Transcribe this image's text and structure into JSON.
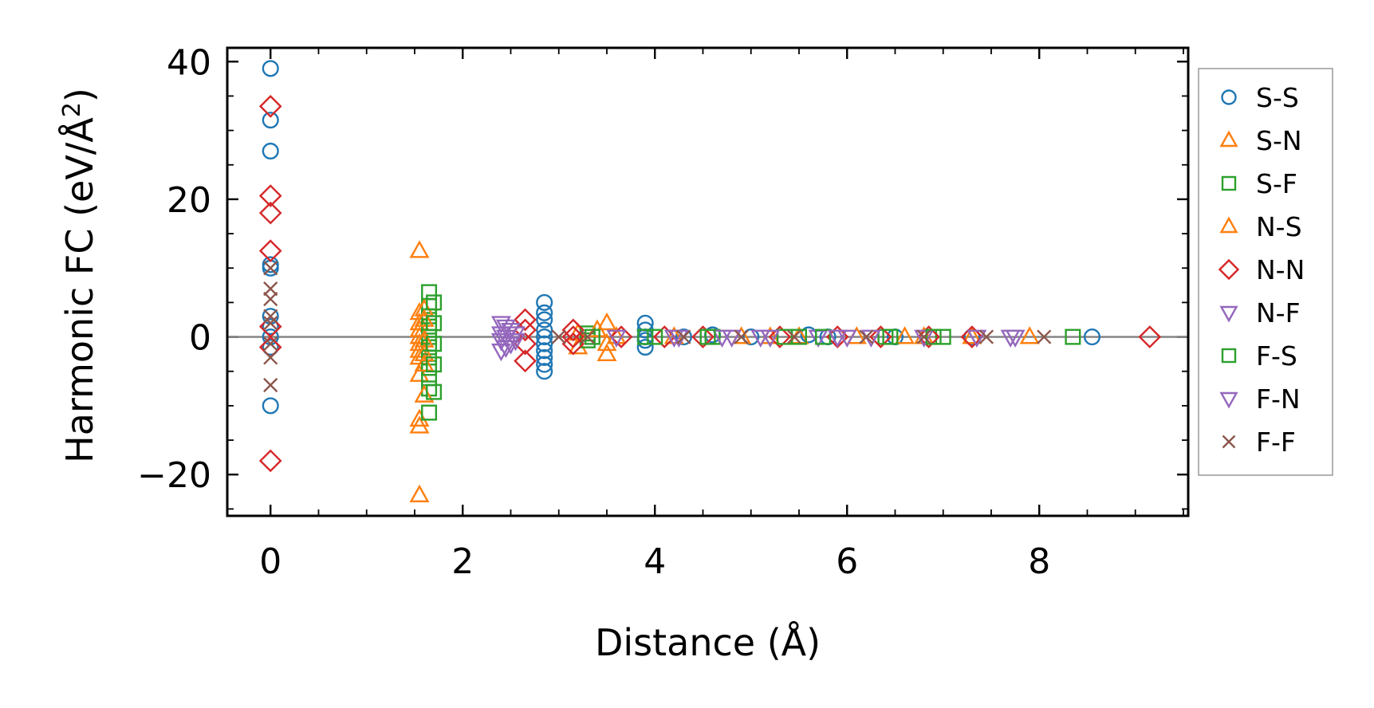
{
  "chart_data": {
    "type": "scatter",
    "title": "",
    "xlabel": "Distance (Å)",
    "ylabel": "Harmonic FC (eV/Å²)",
    "ylabel_main": "Harmonic FC (eV/Å",
    "ylabel_sup": "2",
    "ylabel_end": ")",
    "xlim": [
      -0.45,
      9.55
    ],
    "ylim": [
      -26,
      42
    ],
    "x_ticks": [
      0,
      2,
      4,
      6,
      8
    ],
    "x_tick_labels": [
      "0",
      "2",
      "4",
      "6",
      "8"
    ],
    "x_minor_step": 0.5,
    "y_ticks": [
      -20,
      0,
      20,
      40
    ],
    "y_tick_labels": [
      "−20",
      "0",
      "20",
      "40"
    ],
    "y_minor_step": 5,
    "zero_line": 0,
    "grid": false,
    "legend_position": "outside-right",
    "series": [
      {
        "name": "S-S",
        "marker": "circle",
        "color": "#1f77b4",
        "points": [
          [
            0,
            39
          ],
          [
            0,
            31.5
          ],
          [
            0,
            27
          ],
          [
            0,
            10.5
          ],
          [
            0,
            10
          ],
          [
            0,
            3
          ],
          [
            0,
            1.5
          ],
          [
            0,
            0
          ],
          [
            0,
            -1.5
          ],
          [
            0,
            -10
          ],
          [
            2.85,
            5
          ],
          [
            2.85,
            3.5
          ],
          [
            2.85,
            2.5
          ],
          [
            2.85,
            1
          ],
          [
            2.85,
            0
          ],
          [
            2.85,
            -1
          ],
          [
            2.85,
            -2
          ],
          [
            2.85,
            -3
          ],
          [
            2.85,
            -4
          ],
          [
            2.85,
            -5
          ],
          [
            3.9,
            2
          ],
          [
            3.9,
            1
          ],
          [
            3.9,
            0
          ],
          [
            3.9,
            -0.5
          ],
          [
            3.9,
            -1.5
          ],
          [
            4.3,
            0
          ],
          [
            4.6,
            0.3
          ],
          [
            5.0,
            0
          ],
          [
            5.6,
            0.3
          ],
          [
            5.8,
            0
          ],
          [
            6.5,
            0
          ],
          [
            7.3,
            0
          ],
          [
            8.55,
            0
          ]
        ]
      },
      {
        "name": "S-N",
        "marker": "triangle-up",
        "color": "#ff7f0e",
        "points": [
          [
            1.55,
            12.5
          ],
          [
            1.55,
            3.5
          ],
          [
            1.55,
            2
          ],
          [
            1.55,
            1
          ],
          [
            1.55,
            0
          ],
          [
            1.55,
            -1
          ],
          [
            1.55,
            -2
          ],
          [
            1.55,
            -3
          ],
          [
            1.55,
            -5.5
          ],
          [
            1.55,
            -12
          ],
          [
            1.55,
            -13
          ],
          [
            1.55,
            -23
          ],
          [
            3.2,
            0.5
          ],
          [
            3.2,
            -1.5
          ],
          [
            3.5,
            2
          ],
          [
            3.5,
            -1
          ],
          [
            3.5,
            -2.5
          ],
          [
            4.9,
            0
          ],
          [
            5.5,
            0
          ],
          [
            6.6,
            0
          ],
          [
            7.3,
            0
          ],
          [
            7.9,
            0
          ]
        ]
      },
      {
        "name": "S-F",
        "marker": "square",
        "color": "#2ca02c",
        "points": [
          [
            1.65,
            6.5
          ],
          [
            1.65,
            4.5
          ],
          [
            1.65,
            3
          ],
          [
            1.65,
            1.5
          ],
          [
            1.65,
            0
          ],
          [
            1.65,
            -1.5
          ],
          [
            1.65,
            -3
          ],
          [
            1.65,
            -4.5
          ],
          [
            1.65,
            -6
          ],
          [
            1.65,
            -7.5
          ],
          [
            1.65,
            -11
          ],
          [
            3.3,
            0.5
          ],
          [
            3.3,
            -0.5
          ],
          [
            3.9,
            0
          ],
          [
            4.6,
            0
          ],
          [
            5.5,
            0
          ],
          [
            6.4,
            0
          ],
          [
            7.0,
            0
          ],
          [
            8.35,
            0
          ]
        ]
      },
      {
        "name": "N-S",
        "marker": "triangle-up",
        "color": "#ff7f0e",
        "points": [
          [
            1.6,
            4
          ],
          [
            1.6,
            2.5
          ],
          [
            1.6,
            -0.5
          ],
          [
            1.6,
            -2.5
          ],
          [
            1.6,
            -4
          ],
          [
            1.6,
            -8.5
          ],
          [
            3.4,
            1
          ],
          [
            3.6,
            0
          ],
          [
            4.2,
            0
          ],
          [
            5.2,
            0
          ],
          [
            6.1,
            0
          ],
          [
            6.8,
            0
          ]
        ]
      },
      {
        "name": "N-N",
        "marker": "diamond",
        "color": "#d62728",
        "points": [
          [
            0,
            33.5
          ],
          [
            0,
            20.5
          ],
          [
            0,
            18
          ],
          [
            0,
            12.5
          ],
          [
            0,
            1.5
          ],
          [
            0,
            -1.5
          ],
          [
            0,
            -18
          ],
          [
            2.65,
            2.5
          ],
          [
            2.65,
            1
          ],
          [
            2.65,
            -1
          ],
          [
            2.65,
            -3.5
          ],
          [
            3.15,
            1
          ],
          [
            3.15,
            0
          ],
          [
            3.15,
            -1
          ],
          [
            3.65,
            0
          ],
          [
            4.1,
            0
          ],
          [
            4.5,
            0
          ],
          [
            5.3,
            0
          ],
          [
            5.9,
            0
          ],
          [
            6.35,
            0
          ],
          [
            6.85,
            0
          ],
          [
            7.3,
            0
          ],
          [
            9.15,
            0
          ]
        ]
      },
      {
        "name": "N-F",
        "marker": "triangle-down",
        "color": "#9467bd",
        "points": [
          [
            2.4,
            2
          ],
          [
            2.4,
            0.5
          ],
          [
            2.4,
            -0.5
          ],
          [
            2.4,
            -2
          ],
          [
            2.5,
            1
          ],
          [
            2.5,
            -1
          ],
          [
            3.6,
            0
          ],
          [
            4.2,
            0
          ],
          [
            4.7,
            0
          ],
          [
            5.1,
            0
          ],
          [
            5.7,
            0
          ],
          [
            6.0,
            0
          ],
          [
            6.8,
            0
          ],
          [
            7.7,
            0
          ]
        ]
      },
      {
        "name": "F-S",
        "marker": "square",
        "color": "#2ca02c",
        "points": [
          [
            1.7,
            5
          ],
          [
            1.7,
            2
          ],
          [
            1.7,
            -1
          ],
          [
            1.7,
            -4
          ],
          [
            1.7,
            -8
          ],
          [
            3.35,
            0
          ],
          [
            4.0,
            0
          ],
          [
            4.55,
            0
          ],
          [
            5.35,
            0
          ],
          [
            5.75,
            0
          ],
          [
            6.45,
            0
          ],
          [
            6.9,
            0
          ]
        ]
      },
      {
        "name": "F-N",
        "marker": "triangle-down",
        "color": "#9467bd",
        "points": [
          [
            2.45,
            1.5
          ],
          [
            2.45,
            0
          ],
          [
            2.45,
            -1.5
          ],
          [
            2.55,
            0.5
          ],
          [
            2.55,
            -0.5
          ],
          [
            4.25,
            0
          ],
          [
            4.8,
            0
          ],
          [
            5.2,
            0
          ],
          [
            5.9,
            0
          ],
          [
            6.25,
            0
          ],
          [
            7.35,
            0
          ],
          [
            7.75,
            0
          ]
        ]
      },
      {
        "name": "F-F",
        "marker": "x",
        "color": "#8c564b",
        "points": [
          [
            0,
            10
          ],
          [
            0,
            7
          ],
          [
            0,
            5.5
          ],
          [
            0,
            3
          ],
          [
            0,
            2
          ],
          [
            0,
            -1
          ],
          [
            0,
            -3
          ],
          [
            0,
            -7
          ],
          [
            3.0,
            0
          ],
          [
            3.3,
            0
          ],
          [
            4.3,
            0
          ],
          [
            4.9,
            0
          ],
          [
            5.45,
            0
          ],
          [
            6.2,
            0
          ],
          [
            6.8,
            0
          ],
          [
            7.45,
            0
          ],
          [
            8.05,
            0
          ]
        ]
      }
    ]
  }
}
